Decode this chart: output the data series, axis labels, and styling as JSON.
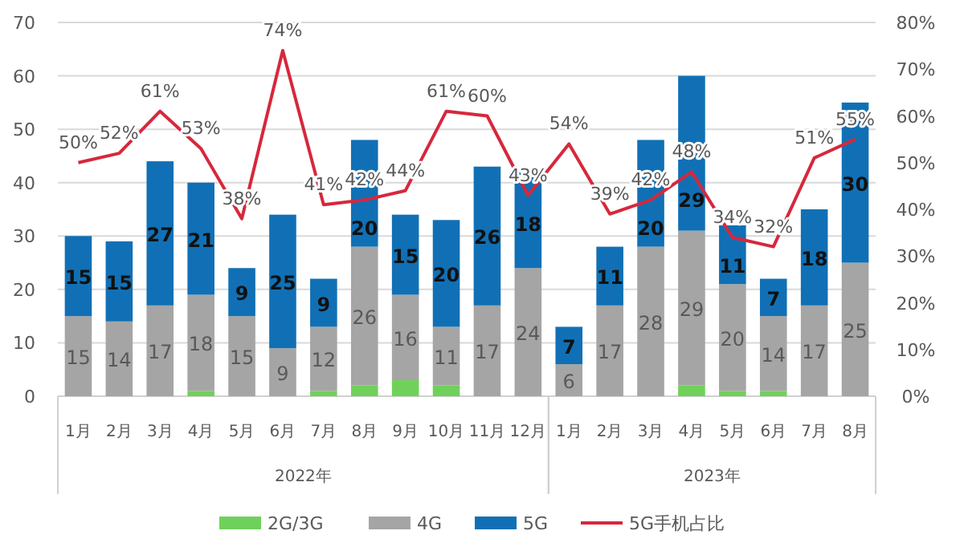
{
  "chart_data": {
    "type": "bar",
    "stacked": true,
    "grid": "y",
    "legend": "bottom",
    "categories": [
      "1月",
      "2月",
      "3月",
      "4月",
      "5月",
      "6月",
      "7月",
      "8月",
      "9月",
      "10月",
      "11月",
      "12月",
      "1月",
      "2月",
      "3月",
      "4月",
      "5月",
      "6月",
      "7月",
      "8月"
    ],
    "annotations": [
      "2022年",
      "2023年"
    ],
    "ylim": [
      0,
      70
    ],
    "yticks": [
      0,
      10,
      20,
      30,
      40,
      50,
      60,
      70
    ],
    "y2lim": [
      0,
      80
    ],
    "y2ticks": [
      {
        "value": 0,
        "label": "0%"
      },
      {
        "value": 10,
        "label": "10%"
      },
      {
        "value": 20,
        "label": "20%"
      },
      {
        "value": 30,
        "label": "30%"
      },
      {
        "value": 40,
        "label": "40%"
      },
      {
        "value": 50,
        "label": "50%"
      },
      {
        "value": 60,
        "label": "60%"
      },
      {
        "value": 70,
        "label": "70%"
      },
      {
        "value": 80,
        "label": "80%"
      }
    ],
    "series": [
      {
        "name": "2G/3G",
        "color": "#70d15a",
        "values": [
          0,
          0,
          0,
          1,
          0,
          0,
          1,
          2,
          3,
          2,
          0,
          0,
          0,
          0,
          0,
          2,
          1,
          1,
          0,
          0
        ]
      },
      {
        "name": "4G",
        "color": "#a5a5a5",
        "values": [
          15,
          14,
          17,
          18,
          15,
          9,
          12,
          26,
          16,
          11,
          17,
          24,
          6,
          17,
          28,
          29,
          20,
          14,
          17,
          25
        ],
        "value_labels": [
          "15",
          "14",
          "17",
          "18",
          "15",
          "9",
          "12",
          "26",
          "16",
          "11",
          "17",
          "24",
          "6",
          "17",
          "28",
          "29",
          "20",
          "14",
          "17",
          "25"
        ]
      },
      {
        "name": "5G",
        "color": "#1170b5",
        "values": [
          15,
          15,
          27,
          21,
          9,
          25,
          9,
          20,
          15,
          20,
          26,
          18,
          7,
          11,
          20,
          29,
          11,
          7,
          18,
          30
        ],
        "value_labels": [
          "15",
          "15",
          "27",
          "21",
          "9",
          "25",
          "9",
          "20",
          "15",
          "20",
          "26",
          "18",
          "7",
          "11",
          "20",
          "29",
          "11",
          "7",
          "18",
          "30"
        ]
      },
      {
        "name": "5G手机占比",
        "type": "line",
        "axis": "y2",
        "color": "#d6283c",
        "values": [
          50,
          52,
          61,
          53,
          38,
          74,
          41,
          42,
          44,
          61,
          60,
          43,
          54,
          39,
          42,
          48,
          34,
          32,
          51,
          55
        ],
        "value_labels": [
          "50%",
          "52%",
          "61%",
          "53%",
          "38%",
          "74%",
          "41%",
          "42%",
          "44%",
          "61%",
          "60%",
          "43%",
          "54%",
          "39%",
          "42%",
          "48%",
          "34%",
          "32%",
          "51%",
          "55%"
        ]
      }
    ]
  }
}
